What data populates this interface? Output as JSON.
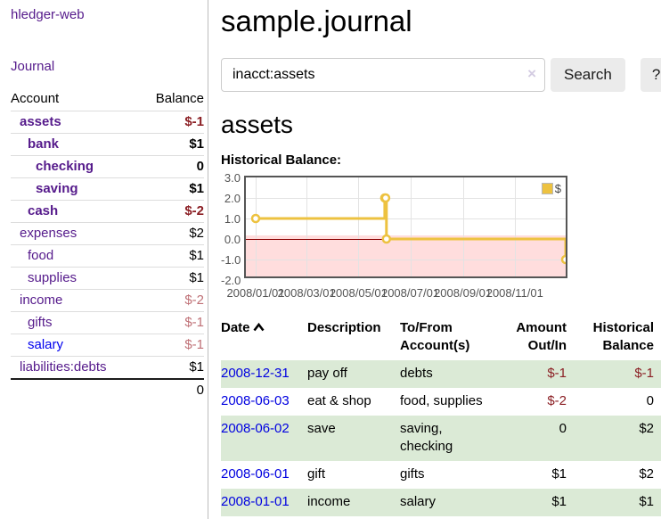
{
  "app": {
    "brand": "hledger-web"
  },
  "sidebar": {
    "journal_link": "Journal",
    "accounts": {
      "header_account": "Account",
      "header_balance": "Balance",
      "rows": [
        {
          "name": "assets",
          "balance": "$-1"
        },
        {
          "name": "bank",
          "balance": "$1"
        },
        {
          "name": "checking",
          "balance": "0"
        },
        {
          "name": "saving",
          "balance": "$1"
        },
        {
          "name": "cash",
          "balance": "$-2"
        },
        {
          "name": "expenses",
          "balance": "$2"
        },
        {
          "name": "food",
          "balance": "$1"
        },
        {
          "name": "supplies",
          "balance": "$1"
        },
        {
          "name": "income",
          "balance": "$-2"
        },
        {
          "name": "gifts",
          "balance": "$-1"
        },
        {
          "name": "salary",
          "balance": "$-1"
        },
        {
          "name": "liabilities:debts",
          "balance": "$1"
        }
      ],
      "total": "0"
    }
  },
  "main": {
    "title": "sample.journal",
    "search": {
      "value": "inacct:assets",
      "clear_icon": "×",
      "search_button": "Search",
      "help_button": "?"
    },
    "heading": "assets",
    "chart_label": "Historical Balance:",
    "register": {
      "headers": {
        "date": "Date",
        "description": "Description",
        "accounts": "To/From Account(s)",
        "amount": "Amount Out/In",
        "balance": "Historical Balance"
      },
      "rows": [
        {
          "date": "2008-12-31",
          "description": "pay off",
          "accounts": "debts",
          "amount": "$-1",
          "balance": "$-1"
        },
        {
          "date": "2008-06-03",
          "description": "eat & shop",
          "accounts": "food, supplies",
          "amount": "$-2",
          "balance": "0"
        },
        {
          "date": "2008-06-02",
          "description": "save",
          "accounts": "saving, checking",
          "amount": "0",
          "balance": "$2"
        },
        {
          "date": "2008-06-01",
          "description": "gift",
          "accounts": "gifts",
          "amount": "$1",
          "balance": "$2"
        },
        {
          "date": "2008-01-01",
          "description": "income",
          "accounts": "salary",
          "amount": "$1",
          "balance": "$1"
        }
      ]
    }
  },
  "chart_data": {
    "type": "line",
    "title": "Historical Balance",
    "steps": true,
    "series": [
      {
        "name": "$",
        "color": "#edc240",
        "points": [
          [
            "2008-01-01",
            1
          ],
          [
            "2008-06-01",
            2
          ],
          [
            "2008-06-02",
            2
          ],
          [
            "2008-06-03",
            0
          ],
          [
            "2008-12-31",
            -1
          ]
        ]
      }
    ],
    "ylim": [
      -2,
      3
    ],
    "yticks": [
      3.0,
      2.0,
      1.0,
      0.0,
      -1.0,
      -2.0
    ],
    "xticks": [
      "2008/01/01",
      "2008/03/01",
      "2008/05/01",
      "2008/07/01",
      "2008/09/01",
      "2008/11/01"
    ],
    "legend": {
      "position": "top-right",
      "label": "$"
    },
    "negative_region_color": "#ffdddd",
    "zero_line_color": "#8b0000",
    "grid": true
  },
  "colors": {
    "link_purple": "#551a8b",
    "link_blue": "#0000ee",
    "negative_strong": "#8b1f24",
    "negative_light": "#bf7076",
    "row_green": "#dbead6",
    "series_gold": "#edc240"
  }
}
